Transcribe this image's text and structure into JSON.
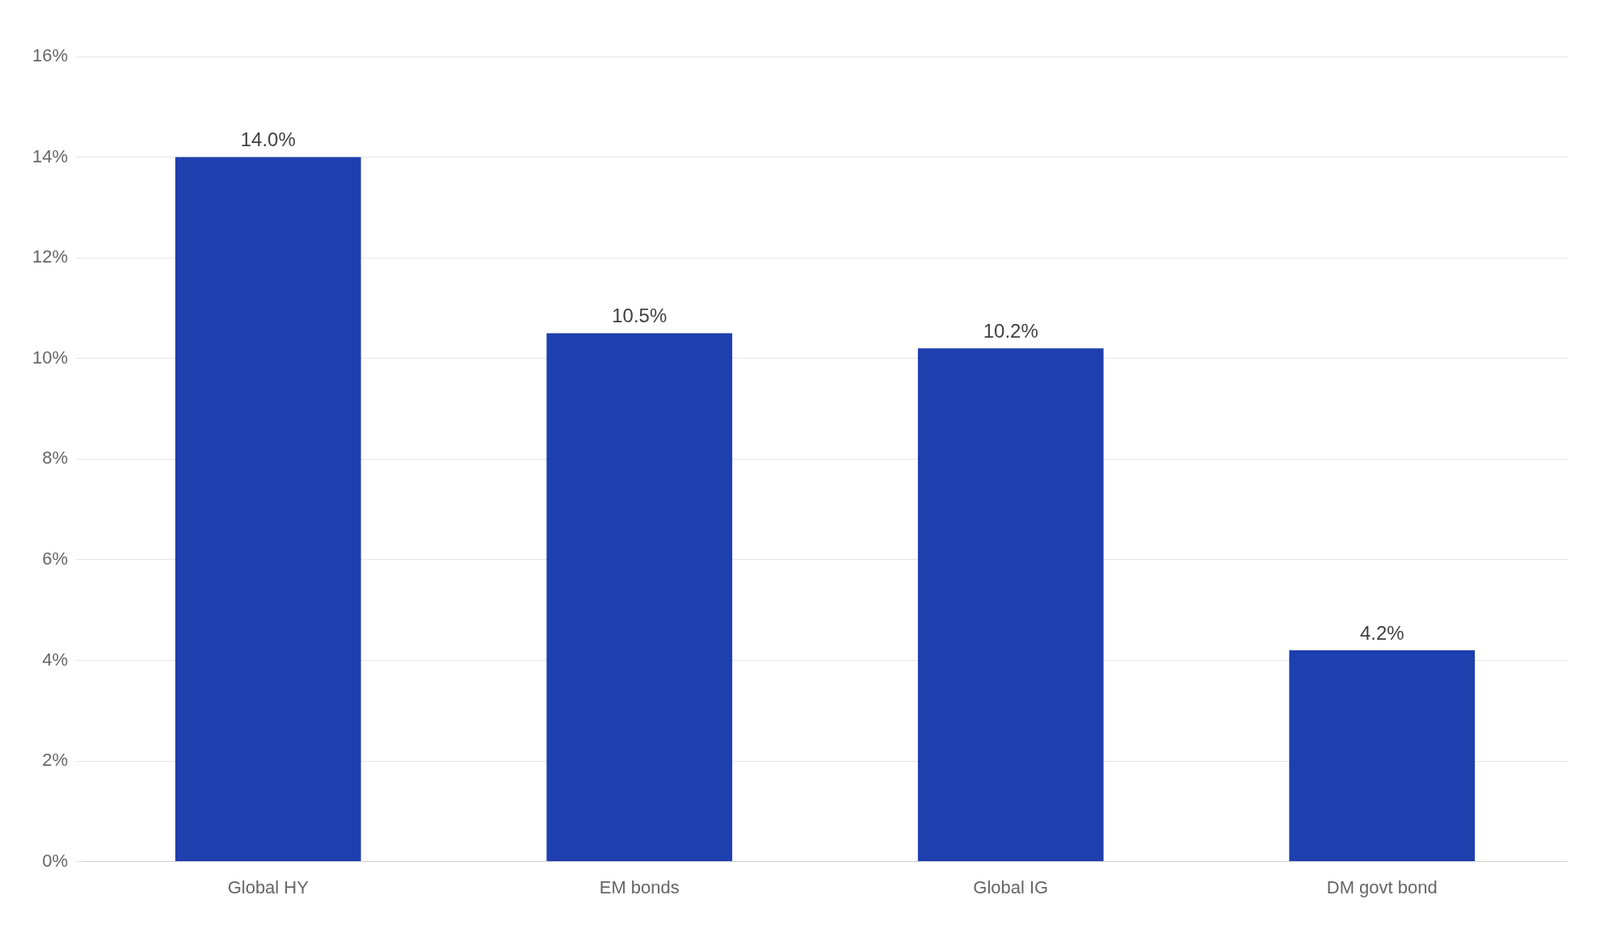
{
  "chart_data": {
    "type": "bar",
    "categories": [
      "Global HY",
      "EM bonds",
      "Global IG",
      "DM govt bond"
    ],
    "values": [
      0.14,
      0.105,
      0.102,
      0.042
    ],
    "value_labels": [
      "14.0%",
      "10.5%",
      "10.2%",
      "4.2%"
    ],
    "data_labels": true,
    "color": "#1E3FAE",
    "ylim": [
      0,
      0.16
    ],
    "yticks": [
      {
        "value": 0.0,
        "label": "0%"
      },
      {
        "value": 0.02,
        "label": "2%"
      },
      {
        "value": 0.04,
        "label": "4%"
      },
      {
        "value": 0.06,
        "label": "6%"
      },
      {
        "value": 0.08,
        "label": "8%"
      },
      {
        "value": 0.1,
        "label": "10%"
      },
      {
        "value": 0.12,
        "label": "12%"
      },
      {
        "value": 0.14,
        "label": "14%"
      },
      {
        "value": 0.16,
        "label": "16%"
      }
    ],
    "grid": true
  }
}
